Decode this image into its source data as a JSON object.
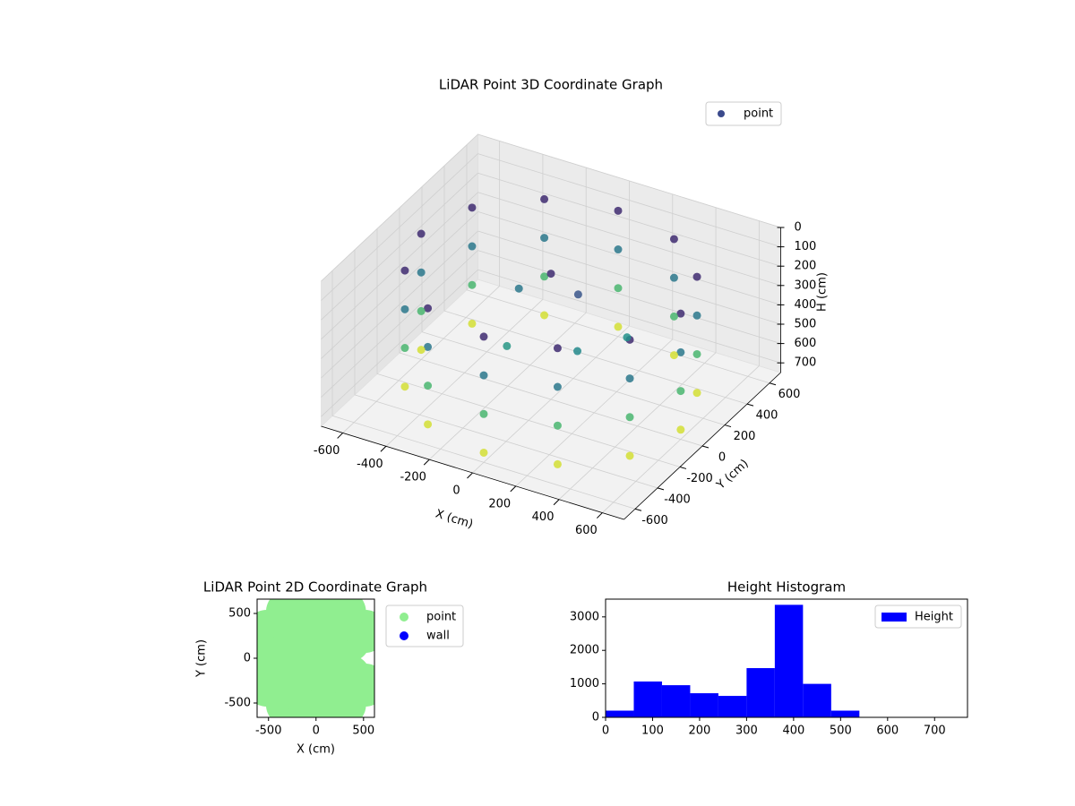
{
  "chart_data": [
    {
      "type": "scatter3d",
      "title": "LiDAR Point 3D Coordinate Graph",
      "xlabel": "X (cm)",
      "ylabel": "Y (cm)",
      "zlabel": "H (cm)",
      "xlim": [
        -700,
        700
      ],
      "ylim": [
        -700,
        700
      ],
      "zlim": [
        750,
        0
      ],
      "xticks": [
        -600,
        -400,
        -200,
        0,
        200,
        400,
        600
      ],
      "yticks": [
        -600,
        -400,
        -200,
        0,
        200,
        400,
        600
      ],
      "zticks": [
        0,
        100,
        200,
        300,
        400,
        500,
        600,
        700
      ],
      "colormap": "viridis",
      "grid": true,
      "legend": "upper right",
      "series": [
        {
          "name": "point",
          "color": "#3b4a8c",
          "x": [
            600,
            520,
            300,
            0,
            -300,
            -520,
            -600,
            -520,
            -300,
            0,
            300,
            520,
            600,
            520,
            300,
            0,
            -300,
            -520,
            -600,
            -520,
            -300,
            0,
            300,
            520,
            600,
            520,
            300,
            0,
            -300,
            -520,
            -600,
            -520,
            -300,
            0,
            300,
            520,
            600,
            520,
            300,
            0,
            -300,
            -520,
            -600,
            -520,
            -300,
            0,
            300,
            520,
            100,
            -200,
            200,
            -100,
            300,
            0
          ],
          "y": [
            0,
            300,
            520,
            600,
            520,
            300,
            0,
            -300,
            -520,
            -600,
            -520,
            -300,
            0,
            300,
            520,
            600,
            520,
            300,
            0,
            -300,
            -520,
            -600,
            -520,
            -300,
            0,
            300,
            520,
            600,
            520,
            300,
            0,
            -300,
            -520,
            -600,
            -520,
            -300,
            0,
            300,
            520,
            600,
            520,
            300,
            0,
            -300,
            -520,
            -600,
            -520,
            -300,
            50,
            100,
            -150,
            -200,
            100,
            0
          ],
          "values": [
            100,
            100,
            100,
            100,
            100,
            100,
            100,
            100,
            100,
            100,
            100,
            100,
            300,
            300,
            300,
            300,
            300,
            300,
            300,
            300,
            300,
            300,
            300,
            300,
            500,
            500,
            500,
            500,
            500,
            500,
            500,
            500,
            500,
            500,
            500,
            500,
            700,
            700,
            700,
            700,
            700,
            700,
            700,
            700,
            700,
            700,
            700,
            700,
            200,
            300,
            350,
            400,
            380,
            100
          ]
        }
      ]
    },
    {
      "type": "scatter",
      "title": "LiDAR Point 2D Coordinate Graph",
      "xlabel": "X (cm)",
      "ylabel": "Y (cm)",
      "xlim": [
        -620,
        615
      ],
      "ylim": [
        -660,
        660
      ],
      "xticks": [
        -500,
        0,
        500
      ],
      "yticks": [
        -500,
        0,
        500
      ],
      "legend": "outside right",
      "series": [
        {
          "name": "point",
          "color": "#90ee90",
          "x": [
            520,
            300,
            0,
            -300,
            -520,
            -600,
            -520,
            -300,
            0,
            300,
            520,
            346,
            200,
            0,
            -200,
            -346,
            -400,
            -346,
            -200,
            0,
            200,
            346,
            200,
            100,
            -100,
            -200,
            -100,
            100,
            0
          ],
          "values": [
            300,
            520,
            600,
            520,
            300,
            0,
            -300,
            -520,
            -600,
            -520,
            -300,
            200,
            346,
            400,
            346,
            200,
            0,
            -200,
            -346,
            -400,
            -346,
            -200,
            0,
            173,
            173,
            0,
            -173,
            -173,
            0
          ]
        },
        {
          "name": "wall",
          "color": "#0000ff",
          "x": [],
          "values": []
        }
      ]
    },
    {
      "type": "histogram",
      "title": "Height Histogram",
      "bins": [
        0,
        60,
        120,
        180,
        240,
        300,
        360,
        420,
        480,
        540,
        600,
        660,
        720
      ],
      "values": [
        200,
        1070,
        960,
        720,
        640,
        1470,
        3360,
        1000,
        200,
        0,
        0,
        0
      ],
      "xlim": [
        0,
        770
      ],
      "ylim": [
        0,
        3530
      ],
      "xticks": [
        0,
        100,
        200,
        300,
        400,
        500,
        600,
        700
      ],
      "yticks": [
        0,
        1000,
        2000,
        3000
      ],
      "legend": "upper right",
      "series": [
        {
          "name": "Height",
          "color": "#0000ff"
        }
      ]
    }
  ]
}
